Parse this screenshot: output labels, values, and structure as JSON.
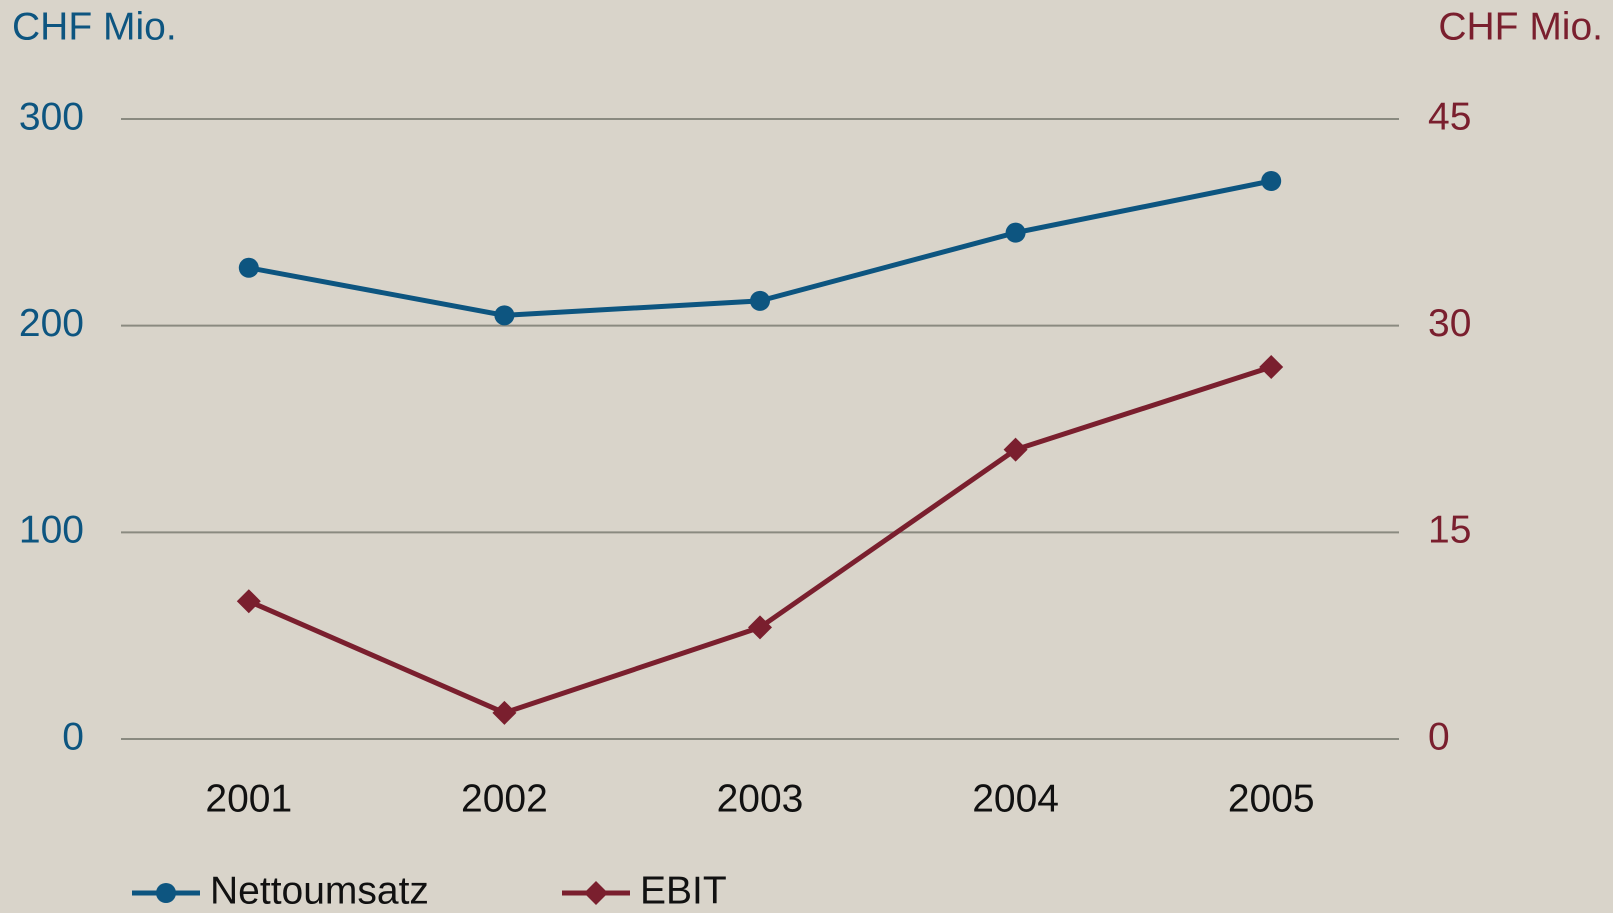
{
  "chart_data": {
    "type": "line",
    "y_label": "CHF Mio.",
    "y2_label": "CHF Mio.",
    "categories": [
      "2001",
      "2002",
      "2003",
      "2004",
      "2005"
    ],
    "series": [
      {
        "name": "Nettoumsatz",
        "color": "#0d5580",
        "marker": "circle",
        "values": [
          228,
          205,
          212,
          245,
          270
        ]
      },
      {
        "name": "EBIT",
        "color": "#7a1f2e",
        "marker": "diamond",
        "axis": "y2",
        "values": [
          10,
          1.9,
          8.1,
          21,
          27
        ]
      }
    ],
    "ylim": [
      0,
      300
    ],
    "yticks": [
      0,
      100,
      200,
      300
    ],
    "y2lim": [
      0,
      45
    ],
    "y2ticks": [
      0,
      15,
      30,
      45
    ],
    "grid": true
  }
}
